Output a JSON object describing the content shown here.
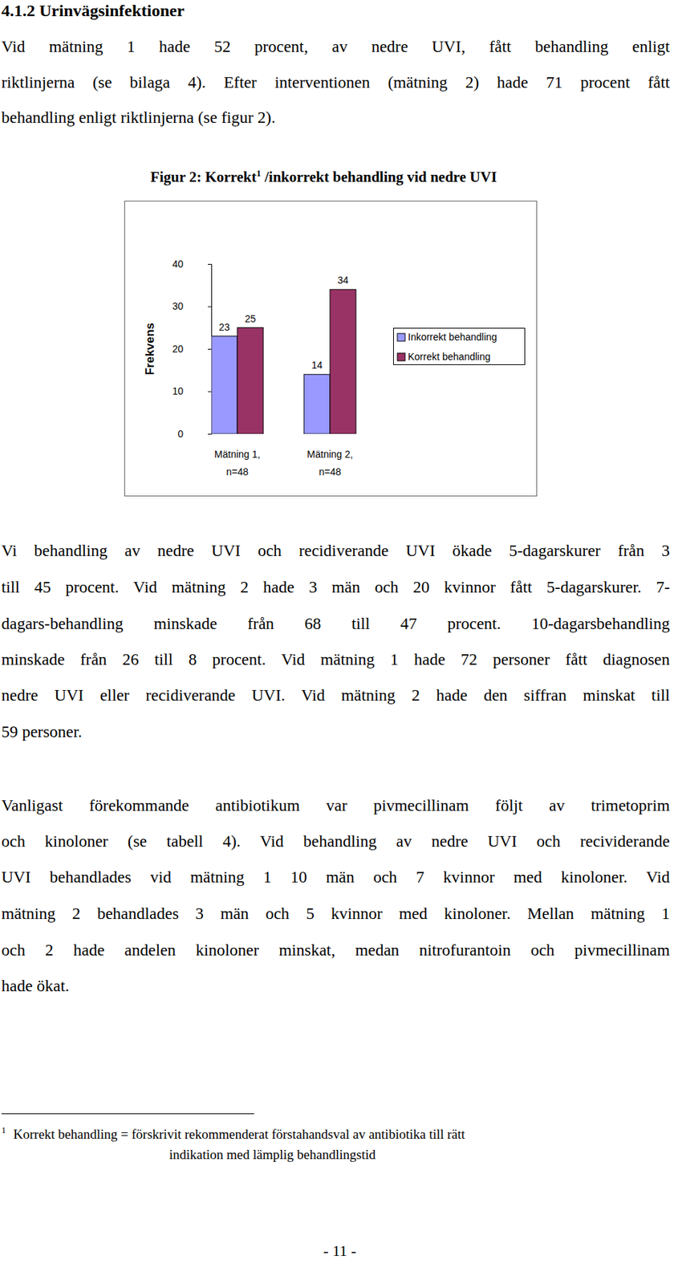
{
  "heading": "4.1.2 Urinvägsinfektioner",
  "paragraphs_before": [
    [
      "Vid mätning 1 hade 52 procent, av nedre UVI, fått behandling enligt",
      "riktlinjerna (se bilaga 4). Efter interventionen (mätning 2) hade 71 procent fått",
      "behandling enligt riktlinjerna (se figur 2)."
    ]
  ],
  "figure": {
    "title_before": "Figur 2: Korrekt",
    "title_ref": "1",
    "title_after": " /inkorrekt behandling vid nedre UVI"
  },
  "chart_data": {
    "type": "bar",
    "categories": [
      "Mätning 1, n=48",
      "Mätning 2, n=48"
    ],
    "series": [
      {
        "name": "Inkorrekt behandling",
        "color": "#9999ff",
        "values": [
          23,
          14
        ]
      },
      {
        "name": "Korrekt behandling",
        "color": "#993366",
        "values": [
          25,
          34
        ]
      }
    ],
    "y_label": "Frekvens",
    "ylim": [
      0,
      40
    ],
    "yticks": [
      0,
      10,
      20,
      30,
      40
    ],
    "grid": false,
    "legend": "right",
    "data_labels": true
  },
  "paragraphs_after": [
    [
      "Vi behandling av nedre UVI och recidiverande UVI ökade 5-dagarskurer från 3",
      "till 45 procent. Vid mätning 2 hade 3 män och 20 kvinnor fått 5-dagarskurer. 7-",
      "dagars-behandling minskade från 68 till 47 procent. 10-dagarsbehandling",
      "minskade från 26 till 8 procent. Vid mätning 1 hade 72 personer fått diagnosen",
      "nedre UVI eller recidiverande UVI. Vid mätning 2 hade den siffran minskat till",
      "59 personer."
    ],
    [
      "Vanligast förekommande antibiotikum var pivmecillinam följt av trimetoprim",
      "och kinoloner (se tabell 4). Vid behandling av nedre UVI och recividerande",
      "UVI behandlades vid mätning 1 10 män och 7 kvinnor med kinoloner. Vid",
      "mätning 2 behandlades 3 män och 5 kvinnor med kinoloner. Mellan mätning 1",
      "och 2 hade andelen kinoloner minskat, medan nitrofurantoin och pivmecillinam",
      "hade ökat."
    ]
  ],
  "footnote": {
    "mark": "1",
    "lines": [
      "Korrekt behandling = förskrivit rekommenderat förstahandsval av antibiotika till rätt",
      "indikation med lämplig behandlingstid"
    ]
  },
  "page_number": "- 11 -"
}
